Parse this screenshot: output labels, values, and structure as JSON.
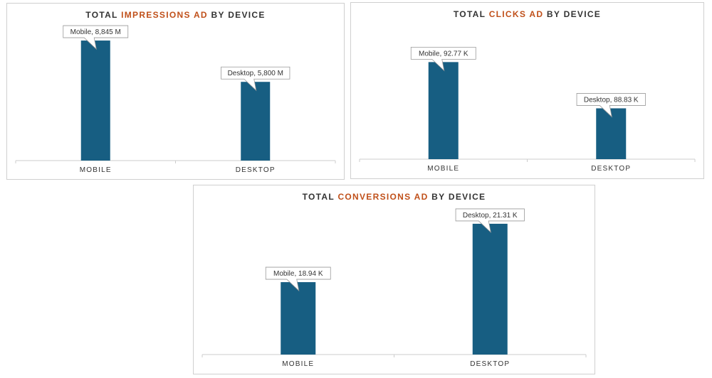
{
  "colors": {
    "bar": "#175e82",
    "accent": "#c0501a",
    "axis": "#cccccc",
    "text": "#333333"
  },
  "chart_data": [
    {
      "type": "bar",
      "title": {
        "prefix": "TOTAL ",
        "highlight": "IMPRESSIONS AD",
        "suffix": " BY DEVICE"
      },
      "categories": [
        "MOBILE",
        "DESKTOP"
      ],
      "values": [
        8845,
        5800
      ],
      "unit": "M",
      "data_labels": [
        "Mobile, 8,845 M",
        "Desktop, 5,800 M"
      ],
      "ylim": [
        0,
        10000
      ]
    },
    {
      "type": "bar",
      "title": {
        "prefix": "TOTAL ",
        "highlight": "CLICKS AD",
        "suffix": " BY DEVICE"
      },
      "categories": [
        "MOBILE",
        "DESKTOP"
      ],
      "values": [
        92.77,
        88.83
      ],
      "unit": "K",
      "data_labels": [
        "Mobile, 92.77 K",
        "Desktop, 88.83 K"
      ],
      "ylim": [
        84.5,
        96.0
      ]
    },
    {
      "type": "bar",
      "title": {
        "prefix": "TOTAL ",
        "highlight": "CONVERSIONS AD",
        "suffix": " BY DEVICE"
      },
      "categories": [
        "MOBILE",
        "DESKTOP"
      ],
      "values": [
        18.94,
        21.31
      ],
      "unit": "K",
      "data_labels": [
        "Mobile, 18.94 K",
        "Desktop, 21.31 K"
      ],
      "ylim": [
        16.0,
        22.0
      ]
    }
  ]
}
